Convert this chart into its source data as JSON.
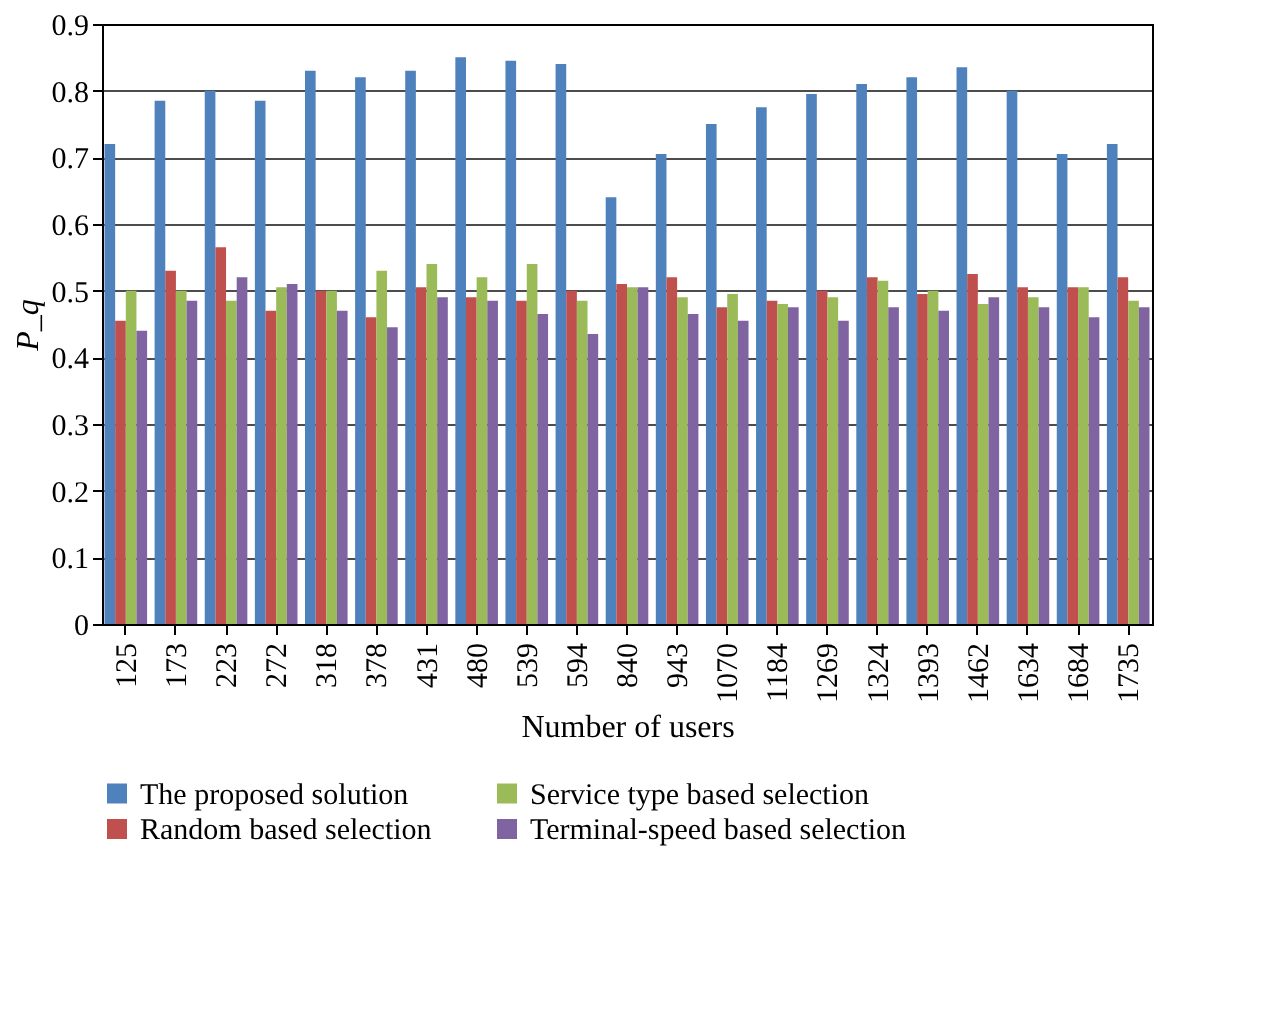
{
  "chart_data": {
    "type": "bar",
    "xlabel": "Number of users",
    "ylabel": "P_q",
    "categories": [
      "125",
      "173",
      "223",
      "272",
      "318",
      "378",
      "431",
      "480",
      "539",
      "594",
      "840",
      "943",
      "1070",
      "1184",
      "1269",
      "1324",
      "1393",
      "1462",
      "1634",
      "1684",
      "1735"
    ],
    "series": [
      {
        "name": "The proposed solution",
        "color": "#4f81bd",
        "values": [
          0.72,
          0.785,
          0.8,
          0.785,
          0.83,
          0.82,
          0.83,
          0.85,
          0.845,
          0.84,
          0.64,
          0.705,
          0.75,
          0.775,
          0.795,
          0.81,
          0.82,
          0.835,
          0.8,
          0.705,
          0.72
        ]
      },
      {
        "name": "Random based selection",
        "color": "#c0504d",
        "values": [
          0.455,
          0.53,
          0.565,
          0.47,
          0.5,
          0.46,
          0.505,
          0.49,
          0.485,
          0.5,
          0.51,
          0.52,
          0.475,
          0.485,
          0.5,
          0.52,
          0.495,
          0.525,
          0.505,
          0.505,
          0.52
        ]
      },
      {
        "name": "Service type based selection",
        "color": "#9bbb59",
        "values": [
          0.5,
          0.5,
          0.485,
          0.505,
          0.5,
          0.53,
          0.54,
          0.52,
          0.54,
          0.485,
          0.505,
          0.49,
          0.495,
          0.48,
          0.49,
          0.515,
          0.5,
          0.48,
          0.49,
          0.505,
          0.485
        ]
      },
      {
        "name": "Terminal-speed based selection",
        "color": "#8064a2",
        "values": [
          0.44,
          0.485,
          0.52,
          0.51,
          0.47,
          0.445,
          0.49,
          0.485,
          0.465,
          0.435,
          0.505,
          0.465,
          0.455,
          0.475,
          0.455,
          0.475,
          0.47,
          0.49,
          0.475,
          0.46,
          0.475
        ]
      }
    ],
    "ylim": [
      0,
      0.9
    ],
    "yticks": [
      0,
      0.1,
      0.2,
      0.3,
      0.4,
      0.5,
      0.6,
      0.7,
      0.8,
      0.9
    ],
    "grid": "y",
    "legend": "bottom"
  }
}
